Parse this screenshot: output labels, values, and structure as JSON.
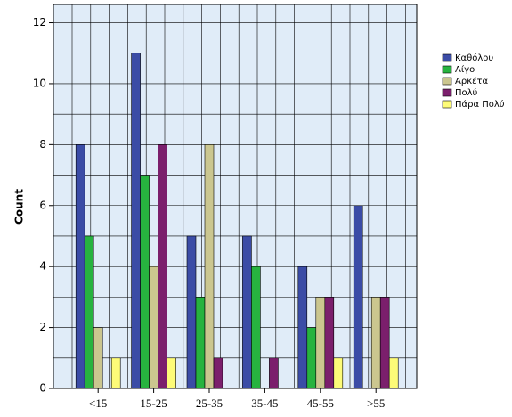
{
  "chart_data": {
    "type": "bar",
    "y_label": "Count",
    "categories": [
      "<15",
      "15-25",
      "25-35",
      "35-45",
      "45-55",
      ">55"
    ],
    "series": [
      {
        "name": "Καθόλου",
        "color": "#3b4ca6",
        "values": [
          8,
          11,
          5,
          5,
          4,
          6
        ]
      },
      {
        "name": "Λίγο",
        "color": "#27b33f",
        "values": [
          5,
          7,
          3,
          4,
          2,
          0
        ]
      },
      {
        "name": "Αρκέτα",
        "color": "#cbc68f",
        "values": [
          2,
          4,
          8,
          0,
          3,
          3
        ]
      },
      {
        "name": "Πολύ",
        "color": "#7b1f6c",
        "values": [
          0,
          8,
          1,
          1,
          3,
          3
        ]
      },
      {
        "name": "Πάρα Πολύ",
        "color": "#fdfb78",
        "values": [
          1,
          1,
          0,
          0,
          1,
          1
        ]
      }
    ],
    "ylim": [
      0,
      12.6
    ],
    "yticks": [
      0,
      2,
      4,
      6,
      8,
      10,
      12
    ],
    "grid": true
  }
}
